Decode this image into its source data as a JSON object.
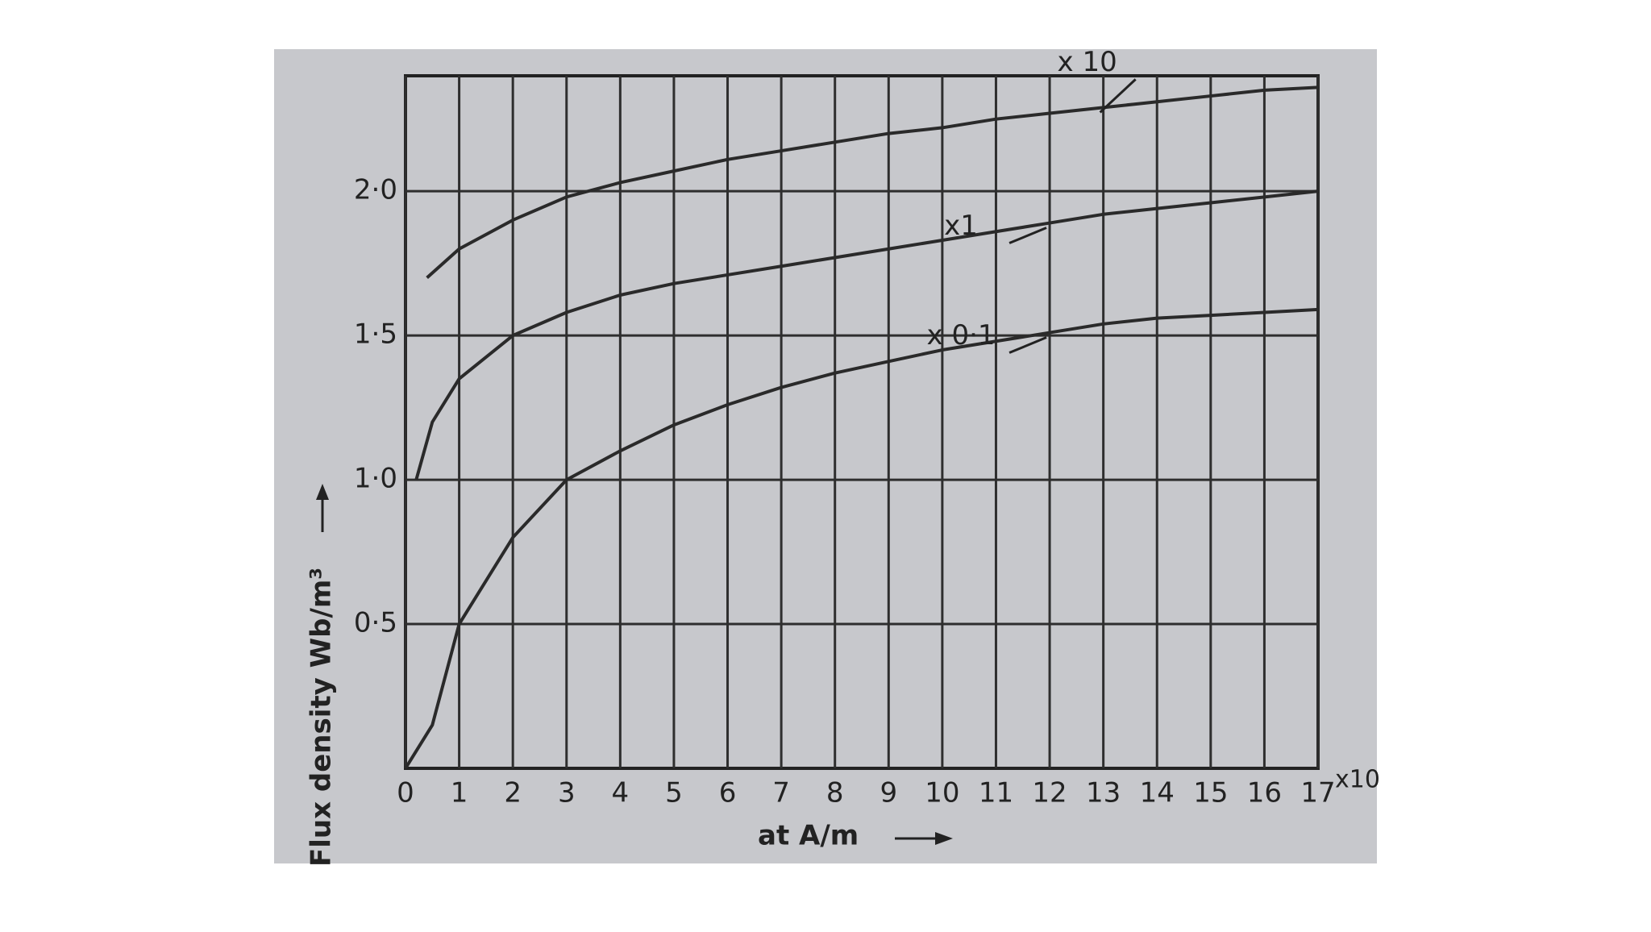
{
  "chart_data": {
    "type": "line",
    "x_label": "at A/m",
    "y_label": "Flux density  Wb/m³",
    "x_multiplier": "x10",
    "xlim": [
      0,
      17
    ],
    "xticks": [
      0,
      1,
      2,
      3,
      4,
      5,
      6,
      7,
      8,
      9,
      10,
      11,
      12,
      13,
      14,
      15,
      16,
      17
    ],
    "ylim": [
      0,
      2.4
    ],
    "yticks": [
      {
        "value": 0.5,
        "label": "0·5"
      },
      {
        "value": 1.0,
        "label": "1·0"
      },
      {
        "value": 1.5,
        "label": "1·5"
      },
      {
        "value": 2.0,
        "label": "2·0"
      }
    ],
    "grid": true,
    "series": [
      {
        "name": "x 10",
        "color": "#2a2a2a",
        "x": [
          0.4,
          1,
          2,
          3,
          4,
          5,
          6,
          7,
          8,
          9,
          10,
          11,
          12,
          13,
          14,
          15,
          16,
          17
        ],
        "values": [
          1.7,
          1.8,
          1.9,
          1.98,
          2.03,
          2.07,
          2.11,
          2.14,
          2.17,
          2.2,
          2.22,
          2.25,
          2.27,
          2.29,
          2.31,
          2.33,
          2.35,
          2.36
        ]
      },
      {
        "name": "x1",
        "color": "#2a2a2a",
        "x": [
          0.2,
          0.5,
          1,
          2,
          3,
          4,
          5,
          6,
          7,
          8,
          9,
          10,
          11,
          12,
          13,
          14,
          15,
          16,
          17
        ],
        "values": [
          1.0,
          1.2,
          1.35,
          1.5,
          1.58,
          1.64,
          1.68,
          1.71,
          1.74,
          1.77,
          1.8,
          1.83,
          1.86,
          1.89,
          1.92,
          1.94,
          1.96,
          1.98,
          2.0
        ]
      },
      {
        "name": "x 0·1",
        "color": "#2a2a2a",
        "x": [
          0,
          0.5,
          1,
          2,
          3,
          4,
          5,
          6,
          7,
          8,
          9,
          10,
          11,
          12,
          13,
          14,
          15,
          16,
          17
        ],
        "values": [
          0,
          0.15,
          0.5,
          0.8,
          1.0,
          1.1,
          1.19,
          1.26,
          1.32,
          1.37,
          1.41,
          1.45,
          1.48,
          1.51,
          1.54,
          1.56,
          1.57,
          1.58,
          1.59
        ]
      }
    ]
  }
}
